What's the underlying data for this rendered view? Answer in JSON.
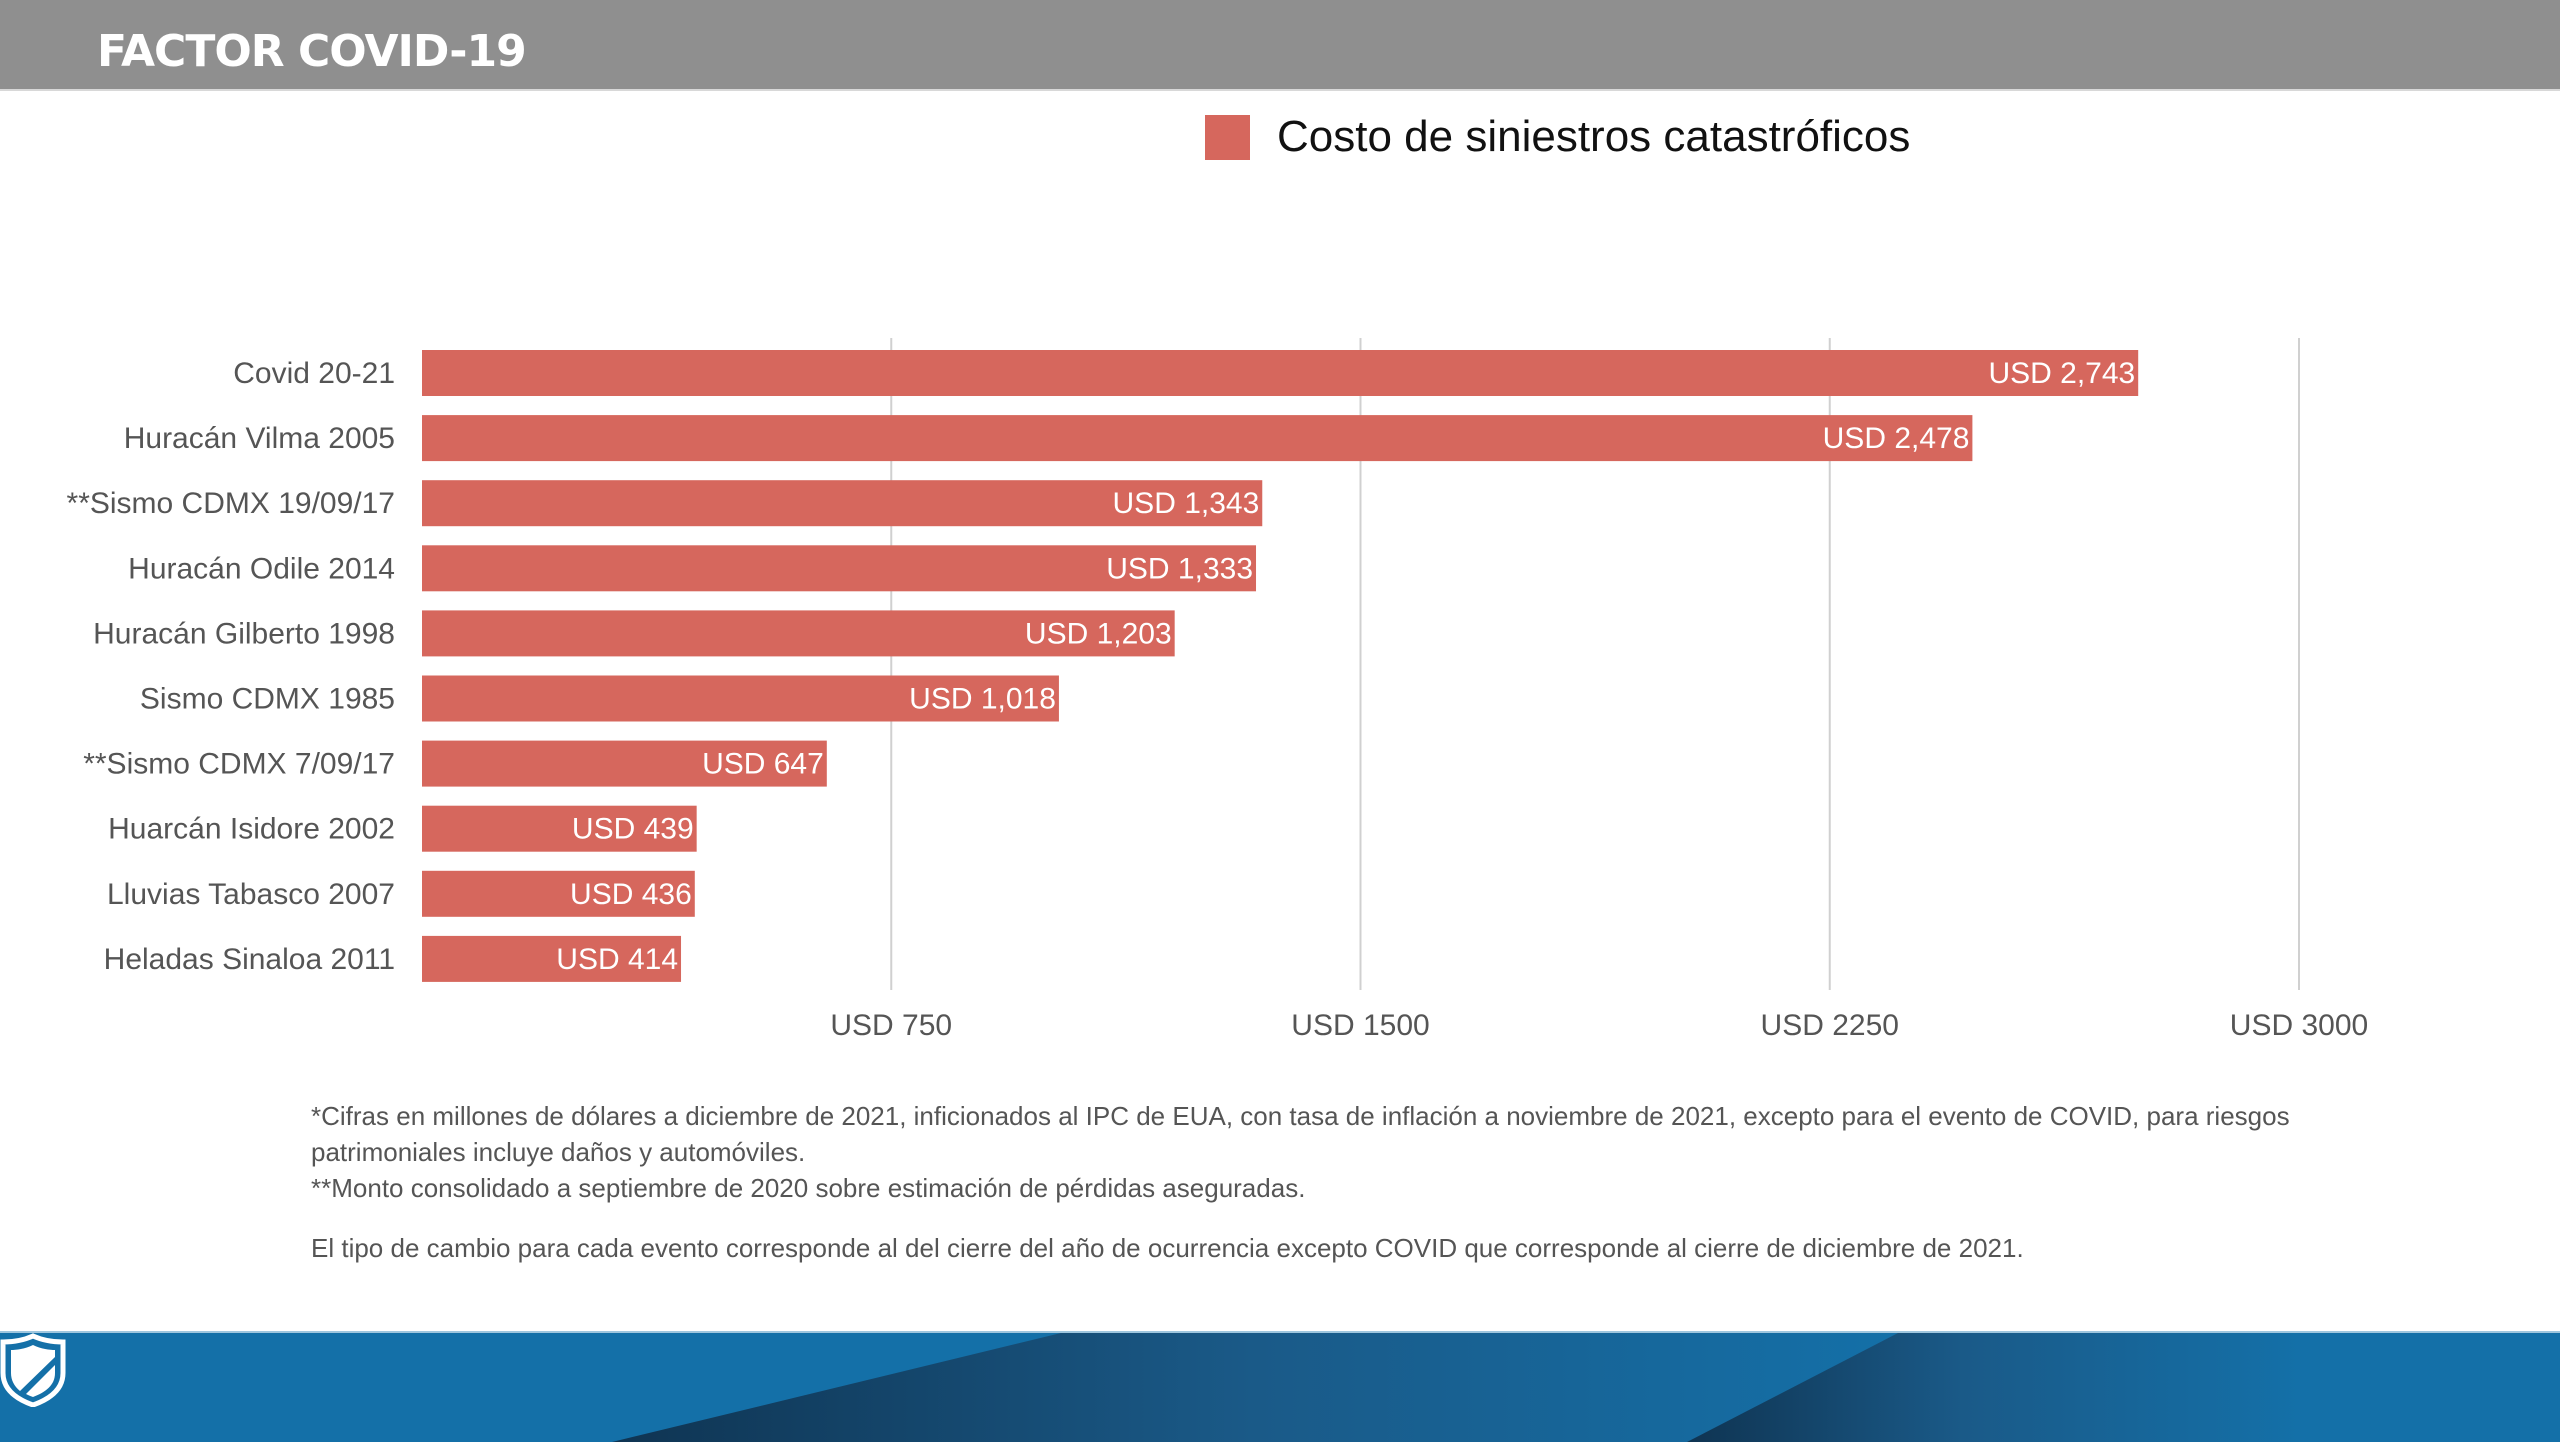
{
  "header": {
    "title": "FACTOR COVID-19"
  },
  "colors": {
    "bar": "#d6675d",
    "header_bg": "#8f8f8f",
    "footer_bg": "#1470a8",
    "grid": "#d0d0d0"
  },
  "legend": {
    "label": "Costo de siniestros catastróficos",
    "icon": "square-swatch"
  },
  "chart_data": {
    "type": "bar",
    "orientation": "horizontal",
    "title": "",
    "xlabel": "",
    "ylabel": "",
    "legend": {
      "entries": [
        "Costo de siniestros catastróficos"
      ],
      "placement": "top-center"
    },
    "categories": [
      "Covid 20-21",
      "Huracán Vilma 2005",
      "**Sismo CDMX 19/09/17",
      "Huracán Odile 2014",
      "Huracán Gilberto 1998",
      "Sismo CDMX 1985",
      "**Sismo CDMX 7/09/17",
      "Huarcán Isidore 2002",
      "Lluvias Tabasco 2007",
      "Heladas Sinaloa 2011"
    ],
    "series": [
      {
        "name": "Costo de siniestros catastróficos",
        "values": [
          2743,
          2478,
          1343,
          1333,
          1203,
          1018,
          647,
          439,
          436,
          414
        ],
        "data_labels": [
          "USD 2,743",
          "USD 2,478",
          "USD 1,343",
          "USD 1,333",
          "USD 1,203",
          "USD 1,018",
          "USD 647",
          "USD 439",
          "USD 436",
          "USD 414"
        ]
      }
    ],
    "xlim": [
      0,
      3000
    ],
    "xticks": [
      750,
      1500,
      2250,
      3000
    ],
    "xtick_labels": [
      "USD 750",
      "USD 1500",
      "USD 2250",
      "USD 3000"
    ],
    "grid": "vertical"
  },
  "notes": {
    "line1": "*Cifras en millones de dólares a diciembre de 2021, inficionados al IPC de EUA, con tasa de inflación a noviembre de 2021, excepto para el evento de COVID, para riesgos patrimoniales incluye daños y automóviles.",
    "line2": "**Monto consolidado a septiembre de 2020 sobre estimación de pérdidas aseguradas.",
    "line3": "El tipo de cambio para cada evento corresponde al del cierre del año de ocurrencia excepto COVID que corresponde al cierre de diciembre de 2021."
  },
  "footer": {
    "logo_icon": "shield-icon"
  }
}
